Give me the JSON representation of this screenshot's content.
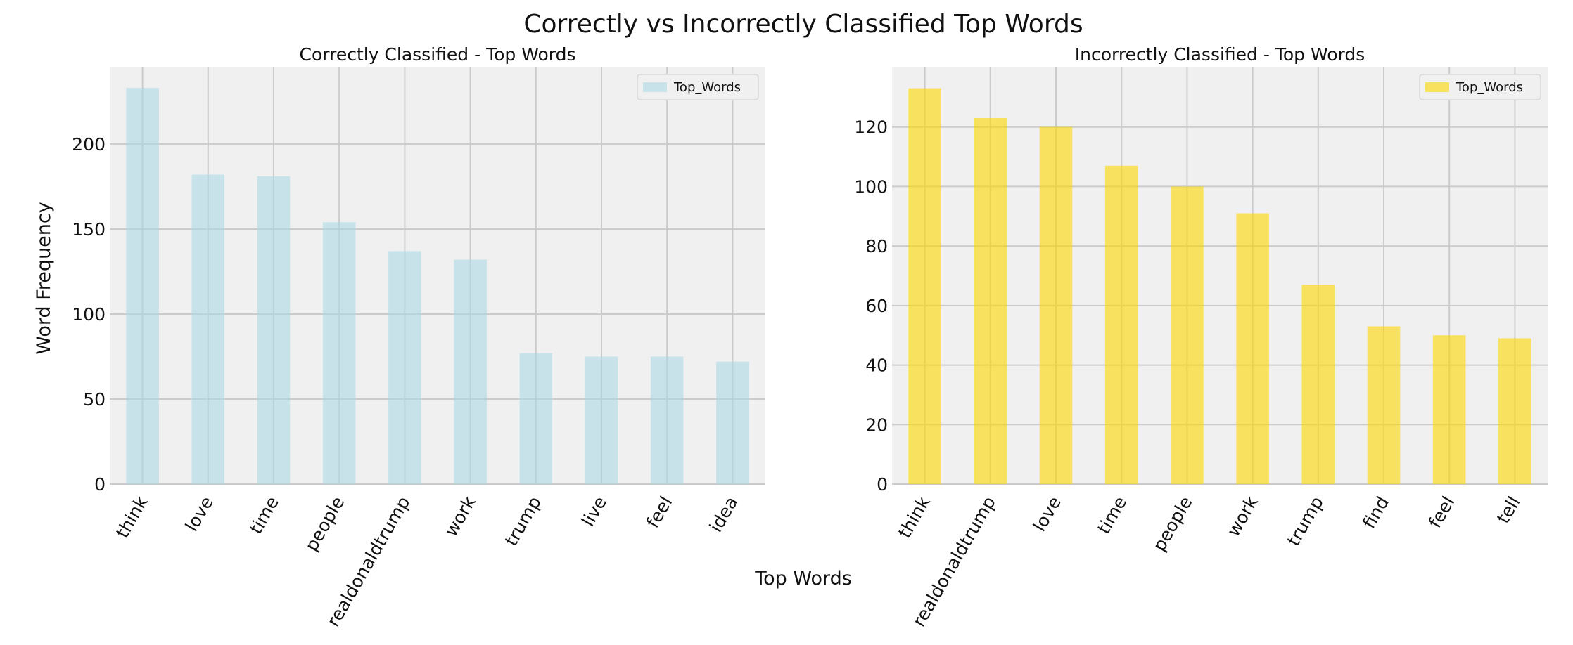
{
  "figure": {
    "suptitle": "Correctly vs Incorrectly Classified Top Words",
    "xlabel": "Top Words",
    "ylabel": "Word Frequency"
  },
  "chart_data": [
    {
      "type": "bar",
      "title": "Correctly Classified - Top Words",
      "xlabel": "Top Words",
      "ylabel": "Word Frequency",
      "categories": [
        "think",
        "love",
        "time",
        "people",
        "realdonaldtrump",
        "work",
        "trump",
        "live",
        "feel",
        "idea"
      ],
      "series": [
        {
          "name": "Top_Words",
          "values": [
            233,
            182,
            181,
            154,
            137,
            132,
            77,
            75,
            75,
            72
          ],
          "color": "#add8e6"
        }
      ],
      "ylim": [
        0,
        245
      ],
      "yticks": [
        0,
        50,
        100,
        150,
        200
      ],
      "grid": true,
      "legend": "top-right"
    },
    {
      "type": "bar",
      "title": "Incorrectly Classified - Top Words",
      "xlabel": "Top Words",
      "ylabel": "",
      "categories": [
        "think",
        "realdonaldtrump",
        "love",
        "time",
        "people",
        "work",
        "trump",
        "find",
        "feel",
        "tell"
      ],
      "series": [
        {
          "name": "Top_Words",
          "values": [
            133,
            123,
            120,
            107,
            100,
            91,
            67,
            53,
            50,
            49
          ],
          "color": "#ffd700"
        }
      ],
      "ylim": [
        0,
        140
      ],
      "yticks": [
        0,
        20,
        40,
        60,
        80,
        100,
        120
      ],
      "grid": true,
      "legend": "top-right"
    }
  ]
}
